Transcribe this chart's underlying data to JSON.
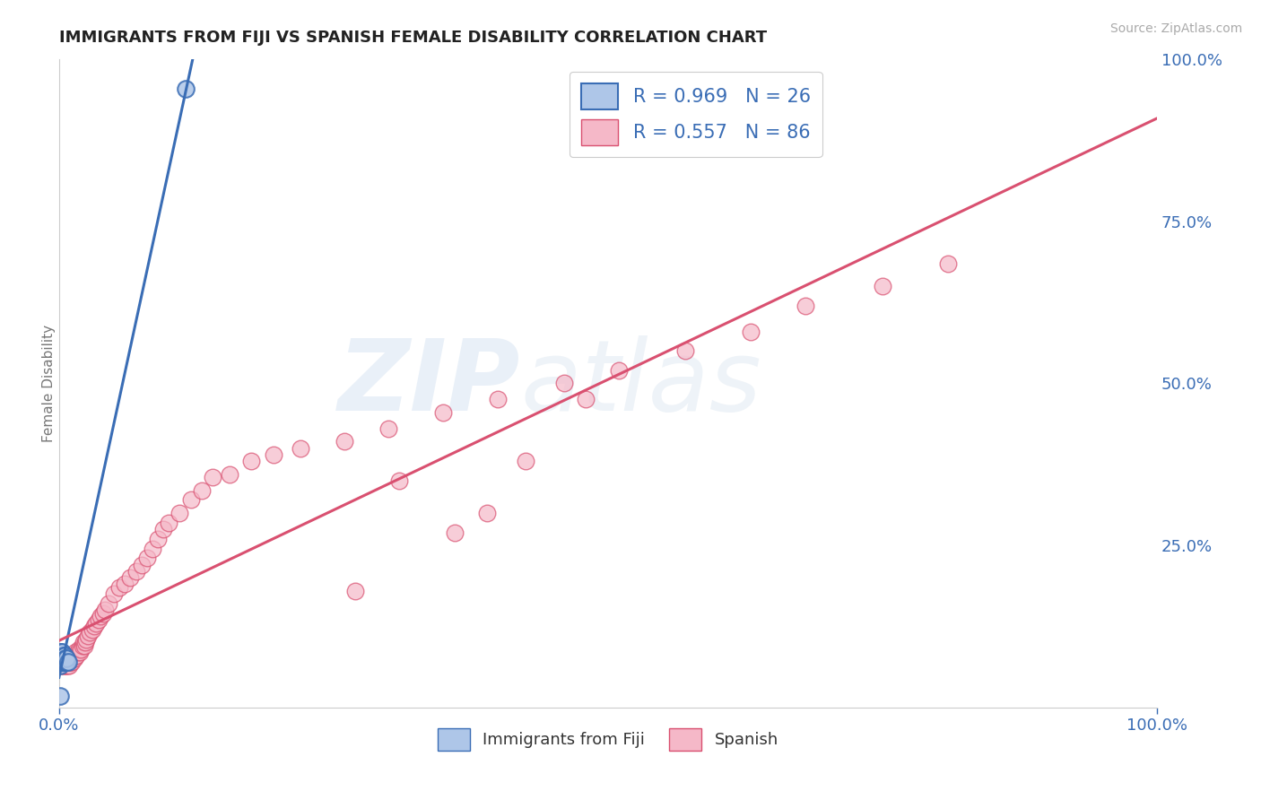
{
  "title": "IMMIGRANTS FROM FIJI VS SPANISH FEMALE DISABILITY CORRELATION CHART",
  "source": "Source: ZipAtlas.com",
  "ylabel": "Female Disability",
  "r_fiji": 0.969,
  "n_fiji": 26,
  "r_spanish": 0.557,
  "n_spanish": 86,
  "color_fiji": "#aec6e8",
  "color_fiji_line": "#3a6db5",
  "color_spanish": "#f5b8c8",
  "color_spanish_line": "#d95070",
  "watermark_zip": "ZIP",
  "watermark_atlas": "atlas",
  "fiji_points_x": [
    0.115,
    0.001,
    0.001,
    0.001,
    0.001,
    0.001,
    0.002,
    0.002,
    0.002,
    0.002,
    0.003,
    0.003,
    0.003,
    0.003,
    0.004,
    0.004,
    0.004,
    0.005,
    0.005,
    0.005,
    0.006,
    0.006,
    0.007,
    0.007,
    0.008,
    0.001
  ],
  "fiji_points_y": [
    0.955,
    0.07,
    0.065,
    0.075,
    0.08,
    0.085,
    0.07,
    0.075,
    0.08,
    0.085,
    0.07,
    0.075,
    0.08,
    0.085,
    0.07,
    0.075,
    0.08,
    0.07,
    0.075,
    0.08,
    0.07,
    0.075,
    0.07,
    0.075,
    0.07,
    0.018
  ],
  "spanish_points_x": [
    0.001,
    0.001,
    0.001,
    0.002,
    0.002,
    0.002,
    0.003,
    0.003,
    0.003,
    0.004,
    0.004,
    0.005,
    0.005,
    0.006,
    0.006,
    0.007,
    0.007,
    0.008,
    0.008,
    0.009,
    0.01,
    0.01,
    0.011,
    0.011,
    0.012,
    0.013,
    0.013,
    0.014,
    0.015,
    0.015,
    0.016,
    0.017,
    0.018,
    0.019,
    0.02,
    0.021,
    0.022,
    0.023,
    0.024,
    0.025,
    0.026,
    0.028,
    0.03,
    0.032,
    0.034,
    0.036,
    0.038,
    0.04,
    0.042,
    0.045,
    0.05,
    0.055,
    0.06,
    0.065,
    0.07,
    0.075,
    0.08,
    0.085,
    0.09,
    0.095,
    0.1,
    0.11,
    0.12,
    0.13,
    0.14,
    0.155,
    0.175,
    0.195,
    0.22,
    0.26,
    0.3,
    0.35,
    0.4,
    0.46,
    0.51,
    0.57,
    0.63,
    0.68,
    0.75,
    0.81,
    0.36,
    0.39,
    0.31,
    0.425,
    0.27,
    0.48
  ],
  "spanish_points_y": [
    0.07,
    0.075,
    0.08,
    0.065,
    0.07,
    0.075,
    0.065,
    0.07,
    0.075,
    0.065,
    0.07,
    0.065,
    0.07,
    0.065,
    0.07,
    0.065,
    0.07,
    0.065,
    0.07,
    0.065,
    0.07,
    0.075,
    0.07,
    0.075,
    0.07,
    0.075,
    0.08,
    0.075,
    0.08,
    0.085,
    0.08,
    0.085,
    0.09,
    0.085,
    0.09,
    0.095,
    0.1,
    0.095,
    0.1,
    0.105,
    0.11,
    0.115,
    0.12,
    0.125,
    0.13,
    0.135,
    0.14,
    0.145,
    0.15,
    0.16,
    0.175,
    0.185,
    0.19,
    0.2,
    0.21,
    0.22,
    0.23,
    0.245,
    0.26,
    0.275,
    0.285,
    0.3,
    0.32,
    0.335,
    0.355,
    0.36,
    0.38,
    0.39,
    0.4,
    0.41,
    0.43,
    0.455,
    0.475,
    0.5,
    0.52,
    0.55,
    0.58,
    0.62,
    0.65,
    0.685,
    0.27,
    0.3,
    0.35,
    0.38,
    0.18,
    0.475
  ],
  "ytick_right_labels": [
    "100.0%",
    "75.0%",
    "50.0%",
    "25.0%"
  ],
  "ytick_right_positions": [
    1.0,
    0.75,
    0.5,
    0.25
  ],
  "xlim": [
    0.0,
    1.0
  ],
  "ylim": [
    0.0,
    1.0
  ],
  "legend_fiji_label": "Immigrants from Fiji",
  "legend_spanish_label": "Spanish",
  "background_color": "#ffffff",
  "grid_color": "#cccccc"
}
